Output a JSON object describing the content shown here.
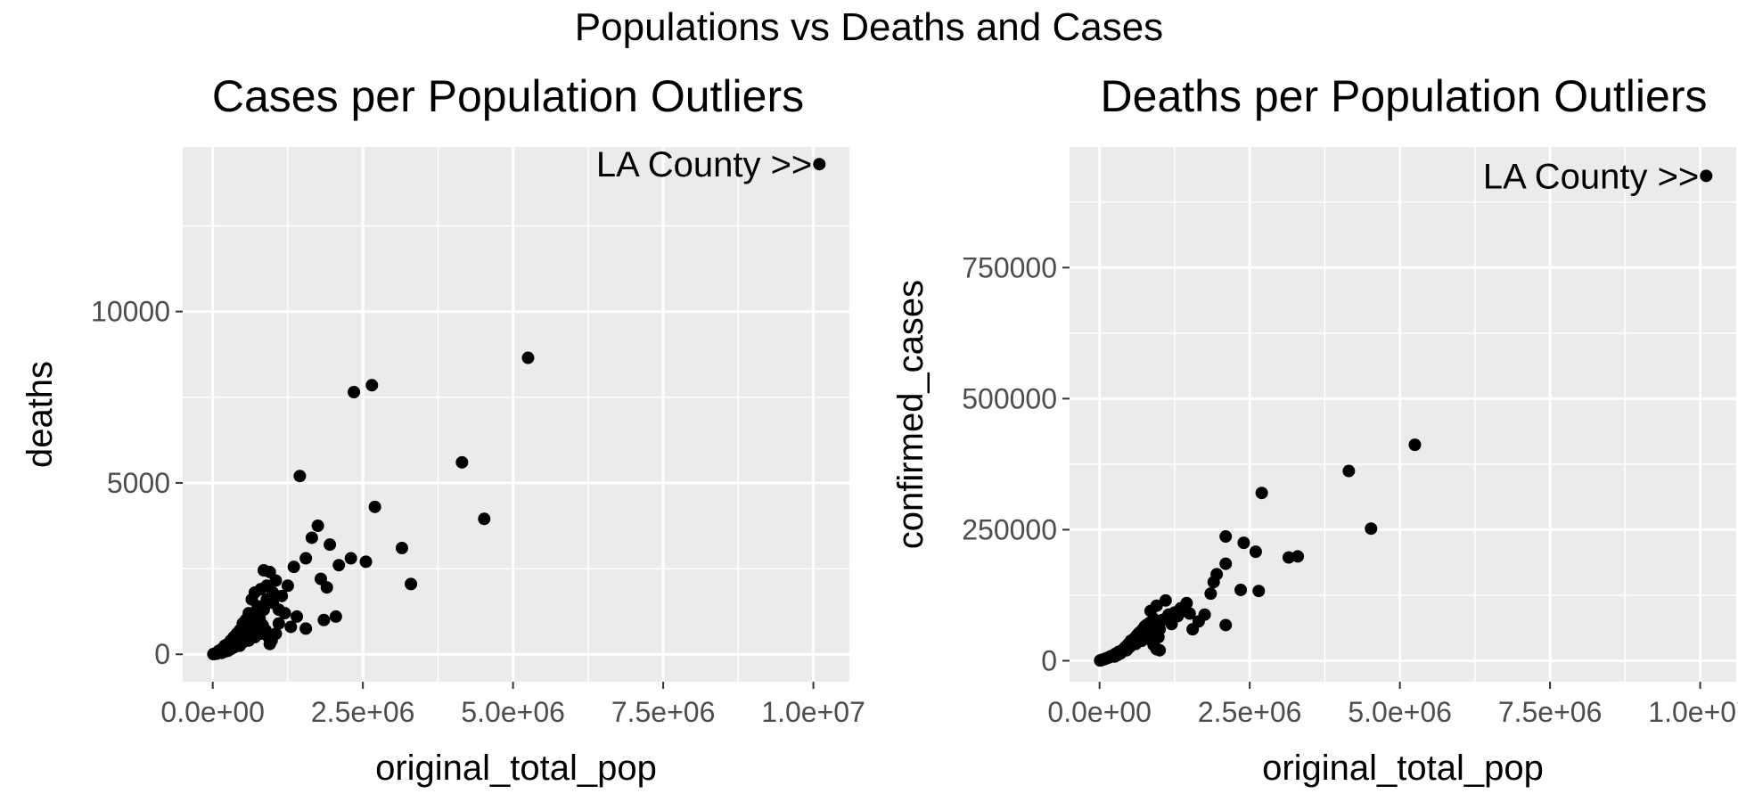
{
  "suptitle": "Populations vs Deaths and Cases",
  "chart_data": [
    {
      "type": "scatter",
      "title": "Cases per Population Outliers",
      "xlabel": "original_total_pop",
      "ylabel": "deaths",
      "xlim": [
        -500000,
        10600000
      ],
      "ylim": [
        -800,
        14800
      ],
      "xticks": [
        0,
        2500000,
        5000000,
        7500000,
        10000000
      ],
      "xtick_labels": [
        "0.0e+00",
        "2.5e+06",
        "5.0e+06",
        "7.5e+06",
        "1.0e+07"
      ],
      "yticks": [
        0,
        5000,
        10000
      ],
      "ytick_labels": [
        "0",
        "5000",
        "10000"
      ],
      "grid": true,
      "panel_background": "#ebebeb",
      "point_color": "#000000",
      "annotation": {
        "text": "LA County >>",
        "x": 10100000,
        "y": 14300
      },
      "points": [
        [
          10100000,
          14300
        ],
        [
          5250000,
          8650
        ],
        [
          2650000,
          7850
        ],
        [
          2350000,
          7650
        ],
        [
          4150000,
          5600
        ],
        [
          1450000,
          5200
        ],
        [
          4520000,
          3950
        ],
        [
          2700000,
          4300
        ],
        [
          1750000,
          3750
        ],
        [
          1650000,
          3400
        ],
        [
          1950000,
          3200
        ],
        [
          3150000,
          3100
        ],
        [
          2100000,
          2600
        ],
        [
          2300000,
          2800
        ],
        [
          2550000,
          2700
        ],
        [
          3300000,
          2050
        ],
        [
          1550000,
          2800
        ],
        [
          1350000,
          2550
        ],
        [
          1800000,
          2200
        ],
        [
          1900000,
          1950
        ],
        [
          2050000,
          1100
        ],
        [
          1850000,
          1000
        ],
        [
          1550000,
          750
        ],
        [
          1400000,
          1100
        ],
        [
          850000,
          2450
        ],
        [
          950000,
          2400
        ],
        [
          1050000,
          2150
        ],
        [
          900000,
          2000
        ],
        [
          1250000,
          2000
        ],
        [
          1150000,
          1700
        ],
        [
          1000000,
          1500
        ],
        [
          800000,
          1900
        ],
        [
          700000,
          1800
        ],
        [
          650000,
          1600
        ],
        [
          750000,
          1400
        ],
        [
          600000,
          1200
        ],
        [
          550000,
          1000
        ],
        [
          500000,
          900
        ],
        [
          450000,
          700
        ],
        [
          400000,
          600
        ],
        [
          350000,
          500
        ],
        [
          300000,
          400
        ],
        [
          250000,
          300
        ],
        [
          200000,
          250
        ],
        [
          150000,
          150
        ],
        [
          100000,
          100
        ],
        [
          80000,
          50
        ],
        [
          50000,
          30
        ],
        [
          20000,
          10
        ],
        [
          10000,
          5
        ],
        [
          120000,
          60
        ],
        [
          170000,
          120
        ],
        [
          220000,
          180
        ],
        [
          270000,
          220
        ],
        [
          320000,
          260
        ],
        [
          380000,
          350
        ],
        [
          420000,
          420
        ],
        [
          480000,
          500
        ],
        [
          520000,
          650
        ],
        [
          570000,
          800
        ],
        [
          620000,
          950
        ],
        [
          680000,
          1100
        ],
        [
          720000,
          1250
        ],
        [
          780000,
          1050
        ],
        [
          830000,
          850
        ],
        [
          880000,
          700
        ],
        [
          930000,
          500
        ],
        [
          980000,
          400
        ],
        [
          1100000,
          900
        ],
        [
          1200000,
          1200
        ],
        [
          1300000,
          800
        ],
        [
          950000,
          300
        ],
        [
          700000,
          500
        ],
        [
          600000,
          400
        ],
        [
          500000,
          350
        ],
        [
          450000,
          250
        ],
        [
          350000,
          200
        ],
        [
          300000,
          150
        ],
        [
          250000,
          100
        ],
        [
          650000,
          750
        ],
        [
          750000,
          900
        ],
        [
          850000,
          1300
        ],
        [
          900000,
          1600
        ],
        [
          1000000,
          1800
        ],
        [
          1100000,
          1300
        ],
        [
          1050000,
          600
        ],
        [
          800000,
          600
        ],
        [
          550000,
          550
        ],
        [
          400000,
          300
        ],
        [
          200000,
          80
        ],
        [
          150000,
          40
        ],
        [
          60000,
          15
        ]
      ]
    },
    {
      "type": "scatter",
      "title": "Deaths per Population Outliers",
      "xlabel": "original_total_pop",
      "ylabel": "confirmed_cases",
      "xlim": [
        -500000,
        10600000
      ],
      "ylim": [
        -40000,
        980000
      ],
      "xticks": [
        0,
        2500000,
        5000000,
        7500000,
        10000000
      ],
      "xtick_labels": [
        "0.0e+00",
        "2.5e+06",
        "5.0e+06",
        "7.5e+06",
        "1.0e+07"
      ],
      "yticks": [
        0,
        250000,
        500000,
        750000
      ],
      "ytick_labels": [
        "0",
        "250000",
        "500000",
        "750000"
      ],
      "grid": true,
      "panel_background": "#ebebeb",
      "point_color": "#000000",
      "annotation": {
        "text": "LA County >>",
        "x": 10100000,
        "y": 925000
      },
      "points": [
        [
          10100000,
          925000
        ],
        [
          5250000,
          412000
        ],
        [
          4150000,
          362000
        ],
        [
          4520000,
          252000
        ],
        [
          2700000,
          320000
        ],
        [
          2100000,
          237000
        ],
        [
          2400000,
          225000
        ],
        [
          2600000,
          208000
        ],
        [
          3150000,
          197000
        ],
        [
          3300000,
          199000
        ],
        [
          2100000,
          185000
        ],
        [
          1950000,
          165000
        ],
        [
          1900000,
          150000
        ],
        [
          1850000,
          128000
        ],
        [
          2350000,
          135000
        ],
        [
          2650000,
          133000
        ],
        [
          2100000,
          68000
        ],
        [
          1750000,
          88000
        ],
        [
          1650000,
          75000
        ],
        [
          1550000,
          60000
        ],
        [
          1400000,
          95000
        ],
        [
          1300000,
          85000
        ],
        [
          1200000,
          70000
        ],
        [
          1100000,
          115000
        ],
        [
          950000,
          105000
        ],
        [
          850000,
          95000
        ],
        [
          900000,
          80000
        ],
        [
          1000000,
          60000
        ],
        [
          950000,
          22000
        ],
        [
          800000,
          55000
        ],
        [
          750000,
          65000
        ],
        [
          700000,
          50000
        ],
        [
          650000,
          45000
        ],
        [
          600000,
          40000
        ],
        [
          550000,
          35000
        ],
        [
          500000,
          30000
        ],
        [
          450000,
          28000
        ],
        [
          400000,
          22000
        ],
        [
          350000,
          18000
        ],
        [
          300000,
          15000
        ],
        [
          250000,
          12000
        ],
        [
          200000,
          9000
        ],
        [
          150000,
          6000
        ],
        [
          100000,
          4000
        ],
        [
          80000,
          3000
        ],
        [
          50000,
          2000
        ],
        [
          20000,
          800
        ],
        [
          10000,
          400
        ],
        [
          120000,
          5000
        ],
        [
          170000,
          7500
        ],
        [
          220000,
          10000
        ],
        [
          270000,
          13500
        ],
        [
          320000,
          17000
        ],
        [
          380000,
          20000
        ],
        [
          420000,
          25000
        ],
        [
          480000,
          32000
        ],
        [
          520000,
          38000
        ],
        [
          570000,
          42000
        ],
        [
          620000,
          48000
        ],
        [
          680000,
          55000
        ],
        [
          720000,
          60000
        ],
        [
          780000,
          68000
        ],
        [
          830000,
          72000
        ],
        [
          880000,
          60000
        ],
        [
          930000,
          50000
        ],
        [
          980000,
          45000
        ],
        [
          1050000,
          78000
        ],
        [
          1150000,
          88000
        ],
        [
          1250000,
          92000
        ],
        [
          1350000,
          100000
        ],
        [
          1450000,
          110000
        ],
        [
          1500000,
          90000
        ],
        [
          700000,
          38000
        ],
        [
          600000,
          32000
        ],
        [
          500000,
          26000
        ],
        [
          450000,
          20000
        ],
        [
          350000,
          14000
        ],
        [
          300000,
          11000
        ],
        [
          250000,
          8000
        ],
        [
          650000,
          52000
        ],
        [
          750000,
          58000
        ],
        [
          850000,
          40000
        ],
        [
          900000,
          30000
        ],
        [
          1000000,
          20000
        ]
      ]
    }
  ]
}
